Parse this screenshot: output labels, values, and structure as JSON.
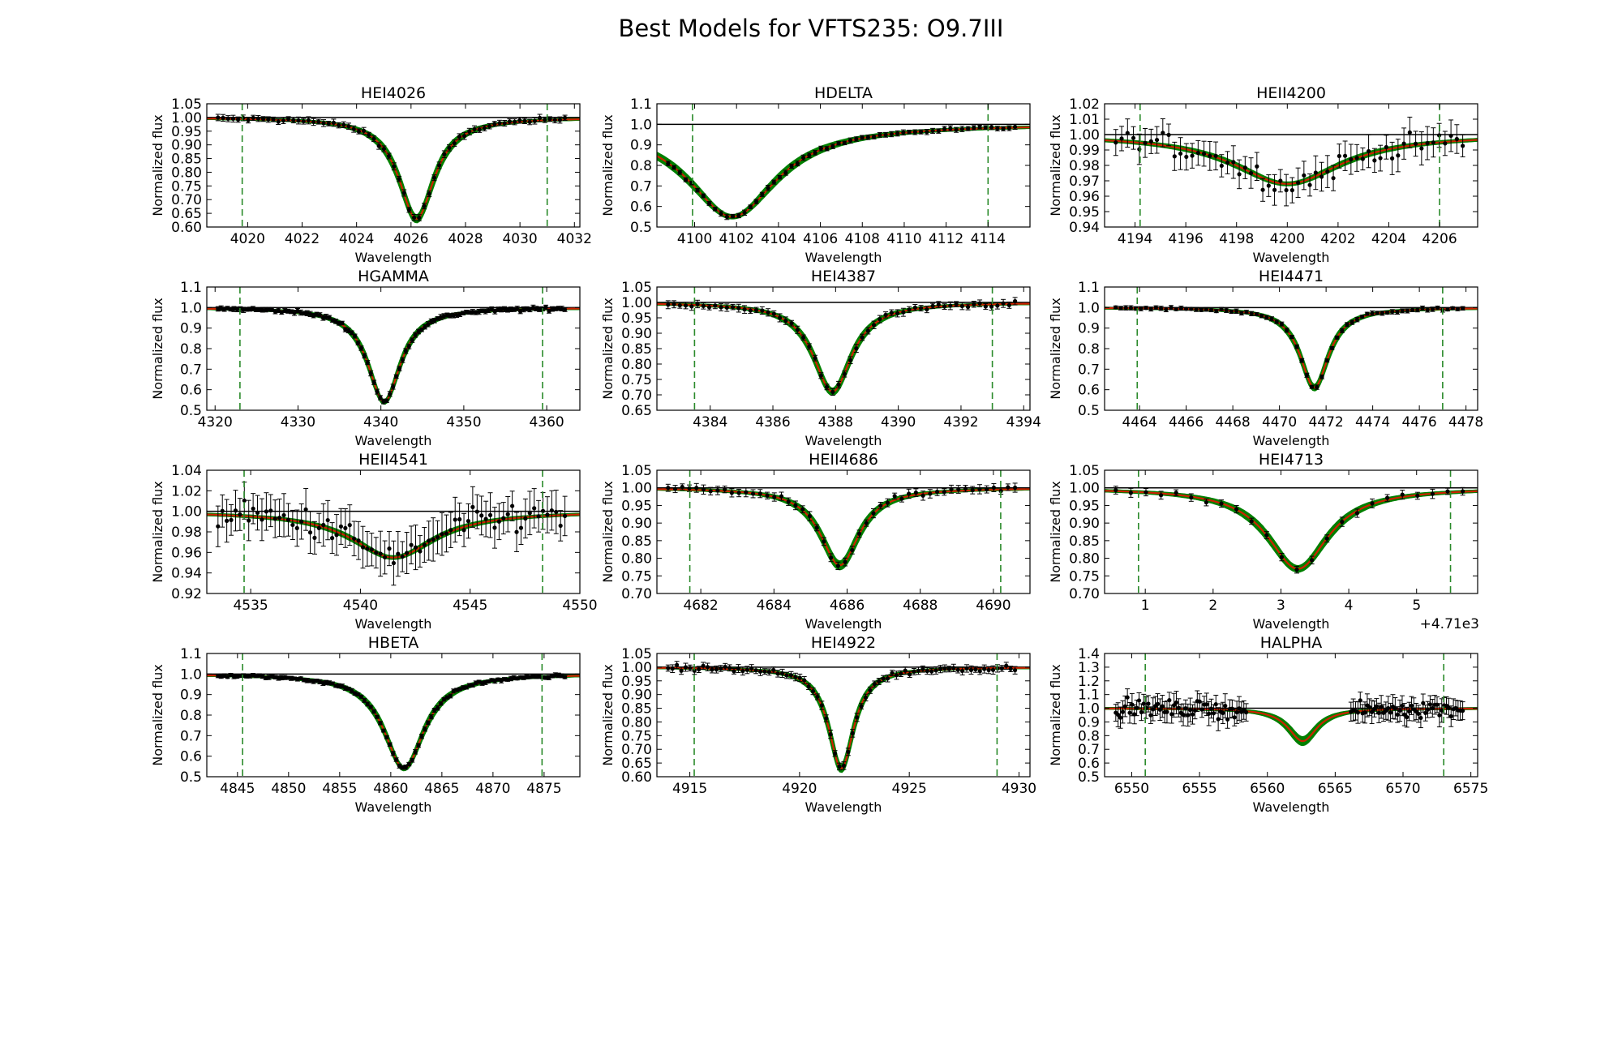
{
  "figure": {
    "title": "Best Models for VFTS235: O9.7III"
  },
  "colors": {
    "data": "#000000",
    "best_model": "#cc2200",
    "model_grid": "#008000",
    "window": "#2a8a2a",
    "continuum": "#000000"
  },
  "chart_data": [
    {
      "type": "line",
      "title": "HEI4026",
      "xlabel": "Wavelength",
      "ylabel": "Normalized flux",
      "xlim": [
        4018.5,
        4032.2
      ],
      "ylim": [
        0.6,
        1.05
      ],
      "xticks": [
        4020,
        4022,
        4024,
        4026,
        4028,
        4030,
        4032
      ],
      "yticks": [
        0.6,
        0.65,
        0.7,
        0.75,
        0.8,
        0.85,
        0.9,
        0.95,
        1.0,
        1.05
      ],
      "ytick_decimals": 2,
      "windows": [
        4019.8,
        4031.0
      ],
      "line_center": 4026.2,
      "depth": 0.37,
      "width": 0.8,
      "grid_spread": 0.02,
      "noise": 0.006,
      "n_points": 70
    },
    {
      "type": "line",
      "title": "HDELTA",
      "xlabel": "Wavelength",
      "ylabel": "Normalized flux",
      "xlim": [
        4098.2,
        4116.0
      ],
      "ylim": [
        0.5,
        1.1
      ],
      "xticks": [
        4100,
        4102,
        4104,
        4106,
        4108,
        4110,
        4112,
        4114
      ],
      "yticks": [
        0.5,
        0.6,
        0.7,
        0.8,
        0.9,
        1.0,
        1.1
      ],
      "ytick_decimals": 1,
      "windows": [
        4099.9,
        4114.0
      ],
      "line_center": 4101.8,
      "depth": 0.45,
      "width": 2.6,
      "grid_spread": 0.01,
      "noise": 0.006,
      "n_points": 60
    },
    {
      "type": "line",
      "title": "HEII4200",
      "xlabel": "Wavelength",
      "ylabel": "Normalized flux",
      "xlim": [
        4192.8,
        4207.5
      ],
      "ylim": [
        0.94,
        1.02
      ],
      "xticks": [
        4194,
        4196,
        4198,
        4200,
        4202,
        4204,
        4206
      ],
      "yticks": [
        0.94,
        0.95,
        0.96,
        0.97,
        0.98,
        0.99,
        1.0,
        1.01,
        1.02
      ],
      "ytick_decimals": 2,
      "windows": [
        4194.2,
        4206.0
      ],
      "line_center": 4200.0,
      "depth": 0.032,
      "width": 2.6,
      "grid_spread": 0.015,
      "noise": 0.005,
      "n_points": 60
    },
    {
      "type": "line",
      "title": "HGAMMA",
      "xlabel": "Wavelength",
      "ylabel": "Normalized flux",
      "xlim": [
        4319.0,
        4364.0
      ],
      "ylim": [
        0.5,
        1.1
      ],
      "xticks": [
        4320,
        4330,
        4340,
        4350,
        4360
      ],
      "yticks": [
        0.5,
        0.6,
        0.7,
        0.8,
        0.9,
        1.0,
        1.1
      ],
      "ytick_decimals": 1,
      "windows": [
        4323.0,
        4359.5
      ],
      "line_center": 4340.4,
      "depth": 0.46,
      "width": 2.4,
      "grid_spread": 0.01,
      "noise": 0.006,
      "n_points": 110
    },
    {
      "type": "line",
      "title": "HEI4387",
      "xlabel": "Wavelength",
      "ylabel": "Normalized flux",
      "xlim": [
        4382.3,
        4394.2
      ],
      "ylim": [
        0.65,
        1.05
      ],
      "xticks": [
        4384,
        4386,
        4388,
        4390,
        4392,
        4394
      ],
      "yticks": [
        0.65,
        0.7,
        0.75,
        0.8,
        0.85,
        0.9,
        0.95,
        1.0,
        1.05
      ],
      "ytick_decimals": 2,
      "windows": [
        4383.5,
        4393.0
      ],
      "line_center": 4387.9,
      "depth": 0.29,
      "width": 0.75,
      "grid_spread": 0.02,
      "noise": 0.006,
      "n_points": 60
    },
    {
      "type": "line",
      "title": "HEI4471",
      "xlabel": "Wavelength",
      "ylabel": "Normalized flux",
      "xlim": [
        4462.5,
        4478.5
      ],
      "ylim": [
        0.5,
        1.1
      ],
      "xticks": [
        4464,
        4466,
        4468,
        4470,
        4472,
        4474,
        4476,
        4478
      ],
      "yticks": [
        0.5,
        0.6,
        0.7,
        0.8,
        0.9,
        1.0,
        1.1
      ],
      "ytick_decimals": 1,
      "windows": [
        4463.9,
        4477.0
      ],
      "line_center": 4471.5,
      "depth": 0.39,
      "width": 0.75,
      "grid_spread": 0.02,
      "noise": 0.005,
      "n_points": 70
    },
    {
      "type": "line",
      "title": "HEII4541",
      "xlabel": "Wavelength",
      "ylabel": "Normalized flux",
      "xlim": [
        4533.0,
        4550.0
      ],
      "ylim": [
        0.92,
        1.04
      ],
      "xticks": [
        4535,
        4540,
        4545,
        4550
      ],
      "yticks": [
        0.92,
        0.94,
        0.96,
        0.98,
        1.0,
        1.02,
        1.04
      ],
      "ytick_decimals": 2,
      "windows": [
        4534.7,
        4548.3
      ],
      "line_center": 4541.5,
      "depth": 0.045,
      "width": 2.3,
      "grid_spread": 0.015,
      "noise": 0.01,
      "n_points": 80
    },
    {
      "type": "line",
      "title": "HEII4686",
      "xlabel": "Wavelength",
      "ylabel": "Normalized flux",
      "xlim": [
        4680.8,
        4691.0
      ],
      "ylim": [
        0.7,
        1.05
      ],
      "xticks": [
        4682,
        4684,
        4686,
        4688,
        4690
      ],
      "yticks": [
        0.7,
        0.75,
        0.8,
        0.85,
        0.9,
        0.95,
        1.0,
        1.05
      ],
      "ytick_decimals": 2,
      "windows": [
        4681.7,
        4690.2
      ],
      "line_center": 4685.8,
      "depth": 0.22,
      "width": 0.65,
      "grid_spread": 0.03,
      "noise": 0.006,
      "n_points": 50
    },
    {
      "type": "line",
      "title": "HEI4713",
      "xlabel": "Wavelength",
      "ylabel": "Normalized flux",
      "xlim": [
        0.4,
        5.9
      ],
      "ylim": [
        0.7,
        1.05
      ],
      "xticks": [
        1,
        2,
        3,
        4,
        5
      ],
      "yticks": [
        0.7,
        0.75,
        0.8,
        0.85,
        0.9,
        0.95,
        1.0,
        1.05
      ],
      "ytick_decimals": 2,
      "x_offset_label": "+4.71e3",
      "windows": [
        0.9,
        5.5
      ],
      "line_center": 3.25,
      "depth": 0.23,
      "width": 0.55,
      "grid_spread": 0.02,
      "noise": 0.006,
      "n_points": 24
    },
    {
      "type": "line",
      "title": "HBETA",
      "xlabel": "Wavelength",
      "ylabel": "Normalized flux",
      "xlim": [
        4842.0,
        4878.5
      ],
      "ylim": [
        0.5,
        1.1
      ],
      "xticks": [
        4845,
        4850,
        4855,
        4860,
        4865,
        4870,
        4875
      ],
      "yticks": [
        0.5,
        0.6,
        0.7,
        0.8,
        0.9,
        1.0,
        1.1
      ],
      "ytick_decimals": 1,
      "windows": [
        4845.5,
        4874.8
      ],
      "line_center": 4861.3,
      "depth": 0.46,
      "width": 2.4,
      "grid_spread": 0.01,
      "noise": 0.005,
      "n_points": 110
    },
    {
      "type": "line",
      "title": "HEI4922",
      "xlabel": "Wavelength",
      "ylabel": "Normalized flux",
      "xlim": [
        4913.5,
        4930.5
      ],
      "ylim": [
        0.6,
        1.05
      ],
      "xticks": [
        4915,
        4920,
        4925,
        4930
      ],
      "yticks": [
        0.6,
        0.65,
        0.7,
        0.75,
        0.8,
        0.85,
        0.9,
        0.95,
        1.0,
        1.05
      ],
      "ytick_decimals": 2,
      "windows": [
        4915.2,
        4929.0
      ],
      "line_center": 4921.9,
      "depth": 0.37,
      "width": 0.7,
      "grid_spread": 0.02,
      "noise": 0.007,
      "n_points": 80
    },
    {
      "type": "line",
      "title": "HALPHA",
      "xlabel": "Wavelength",
      "ylabel": "Normalized flux",
      "xlim": [
        6548.0,
        6575.5
      ],
      "ylim": [
        0.5,
        1.4
      ],
      "xticks": [
        6550,
        6555,
        6560,
        6565,
        6570,
        6575
      ],
      "yticks": [
        0.5,
        0.6,
        0.7,
        0.8,
        0.9,
        1.0,
        1.1,
        1.2,
        1.3,
        1.4
      ],
      "ytick_decimals": 1,
      "windows": [
        6551.0,
        6573.0
      ],
      "line_center": 6562.6,
      "depth": 0.24,
      "width": 1.3,
      "grid_spread": 0.07,
      "noise": 0.04,
      "n_points": 150,
      "gap": [
        6558.5,
        6566.0
      ]
    }
  ]
}
